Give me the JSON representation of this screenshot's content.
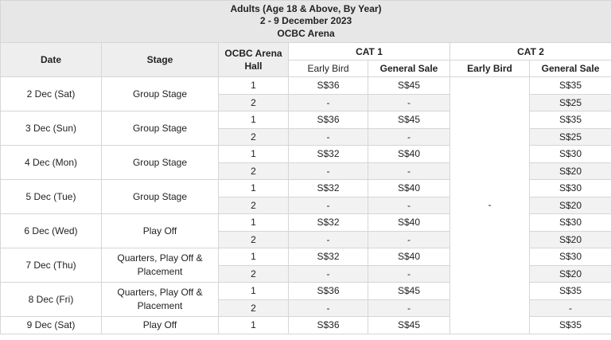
{
  "title": {
    "line1": "Adults (Age 18 & Above, By Year)",
    "line2": "2 - 9 December 2023",
    "line3": "OCBC Arena"
  },
  "headers": {
    "date": "Date",
    "stage": "Stage",
    "hall": "OCBC Arena Hall",
    "cat1": "CAT 1",
    "cat2": "CAT 2",
    "early_bird": "Early Bird",
    "general_sale": "General Sale"
  },
  "cat2_early_bird_all": "-",
  "days": [
    {
      "date": "2 Dec (Sat)",
      "stage": "Group Stage",
      "rows": [
        {
          "hall": "1",
          "c1_eb": "S$36",
          "c1_gs": "S$45",
          "c2_gs": "S$35"
        },
        {
          "hall": "2",
          "c1_eb": "-",
          "c1_gs": "-",
          "c2_gs": "S$25"
        }
      ]
    },
    {
      "date": "3 Dec (Sun)",
      "stage": "Group Stage",
      "rows": [
        {
          "hall": "1",
          "c1_eb": "S$36",
          "c1_gs": "S$45",
          "c2_gs": "S$35"
        },
        {
          "hall": "2",
          "c1_eb": "-",
          "c1_gs": "-",
          "c2_gs": "S$25"
        }
      ]
    },
    {
      "date": "4 Dec (Mon)",
      "stage": "Group Stage",
      "rows": [
        {
          "hall": "1",
          "c1_eb": "S$32",
          "c1_gs": "S$40",
          "c2_gs": "S$30"
        },
        {
          "hall": "2",
          "c1_eb": "-",
          "c1_gs": "-",
          "c2_gs": "S$20"
        }
      ]
    },
    {
      "date": "5 Dec (Tue)",
      "stage": "Group Stage",
      "rows": [
        {
          "hall": "1",
          "c1_eb": "S$32",
          "c1_gs": "S$40",
          "c2_gs": "S$30"
        },
        {
          "hall": "2",
          "c1_eb": "-",
          "c1_gs": "-",
          "c2_gs": "S$20"
        }
      ]
    },
    {
      "date": "6 Dec (Wed)",
      "stage": "Play Off",
      "rows": [
        {
          "hall": "1",
          "c1_eb": "S$32",
          "c1_gs": "S$40",
          "c2_gs": "S$30"
        },
        {
          "hall": "2",
          "c1_eb": "-",
          "c1_gs": "-",
          "c2_gs": "S$20"
        }
      ]
    },
    {
      "date": "7 Dec (Thu)",
      "stage": "Quarters, Play Off & Placement",
      "rows": [
        {
          "hall": "1",
          "c1_eb": "S$32",
          "c1_gs": "S$40",
          "c2_gs": "S$30"
        },
        {
          "hall": "2",
          "c1_eb": "-",
          "c1_gs": "-",
          "c2_gs": "S$20"
        }
      ]
    },
    {
      "date": "8 Dec (Fri)",
      "stage": "Quarters, Play Off & Placement",
      "rows": [
        {
          "hall": "1",
          "c1_eb": "S$36",
          "c1_gs": "S$45",
          "c2_gs": "S$35"
        },
        {
          "hall": "2",
          "c1_eb": "-",
          "c1_gs": "-",
          "c2_gs": "-"
        }
      ]
    },
    {
      "date": "9 Dec (Sat)",
      "stage": "Play Off",
      "rows": [
        {
          "hall": "1",
          "c1_eb": "S$36",
          "c1_gs": "S$45",
          "c2_gs": "S$35"
        }
      ]
    }
  ]
}
